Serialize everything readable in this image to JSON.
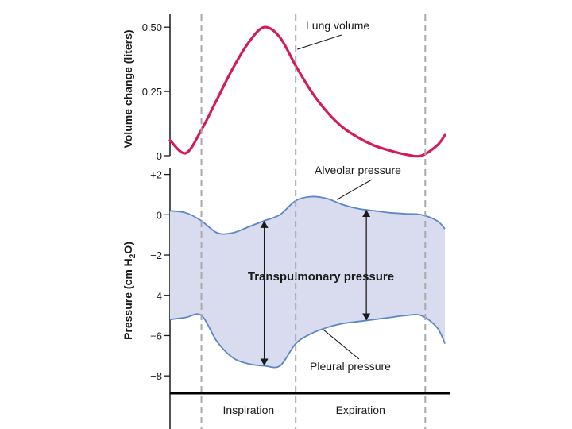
{
  "chart_data": [
    {
      "type": "line",
      "panel": "volume",
      "ylabel": "Volume change (liters)",
      "ylim": [
        0,
        0.55
      ],
      "yticks": [
        0,
        0.25,
        0.5
      ],
      "ytick_labels": [
        "0",
        "0.25",
        "0.50"
      ],
      "xlim": [
        0,
        7
      ],
      "series": [
        {
          "name": "Lung volume",
          "color": "#d6195c",
          "x": [
            0,
            0.4,
            0.8,
            1.2,
            1.6,
            2.0,
            2.4,
            2.8,
            3.2,
            3.6,
            4.0,
            4.4,
            4.8,
            5.2,
            5.6,
            6.0,
            6.4,
            6.8,
            7.0
          ],
          "y": [
            0.06,
            0.01,
            0.1,
            0.22,
            0.34,
            0.44,
            0.5,
            0.46,
            0.35,
            0.25,
            0.17,
            0.11,
            0.07,
            0.04,
            0.02,
            0.005,
            0.0,
            0.04,
            0.08
          ]
        }
      ],
      "annotations": [
        {
          "text": "Lung volume",
          "x": 3.0,
          "y": 0.42
        }
      ]
    },
    {
      "type": "line",
      "panel": "pressure",
      "ylabel": "Pressure (cm H2O)",
      "ylabel_main": "Pressure (cm H",
      "ylabel_sub": "2",
      "ylabel_tail": "O)",
      "ylim": [
        -8.9,
        2.3
      ],
      "yticks": [
        2,
        0,
        -2,
        -4,
        -6,
        -8
      ],
      "ytick_labels": [
        "+2",
        "0",
        "−2",
        "−4",
        "−6",
        "−8"
      ],
      "xlim": [
        0,
        7
      ],
      "series": [
        {
          "name": "Alveolar pressure",
          "color": "#5a87c5",
          "x": [
            0,
            0.4,
            0.8,
            1.2,
            1.6,
            2.0,
            2.4,
            2.8,
            3.2,
            3.6,
            4.0,
            4.4,
            4.8,
            5.2,
            5.6,
            6.0,
            6.4,
            6.8,
            7.0
          ],
          "y": [
            0.2,
            0.1,
            -0.3,
            -0.9,
            -0.9,
            -0.6,
            -0.3,
            0.0,
            0.7,
            0.9,
            0.8,
            0.5,
            0.3,
            0.2,
            0.1,
            0.05,
            0.0,
            -0.3,
            -0.7
          ]
        },
        {
          "name": "Pleural pressure",
          "color": "#5a87c5",
          "x": [
            0,
            0.4,
            0.8,
            1.2,
            1.6,
            2.0,
            2.4,
            2.8,
            3.2,
            3.6,
            4.0,
            4.4,
            4.8,
            5.2,
            5.6,
            6.0,
            6.4,
            6.8,
            7.0
          ],
          "y": [
            -5.2,
            -5.1,
            -5.0,
            -6.3,
            -7.1,
            -7.4,
            -7.5,
            -7.5,
            -6.4,
            -5.9,
            -5.6,
            -5.4,
            -5.3,
            -5.2,
            -5.1,
            -5.0,
            -5.0,
            -5.6,
            -6.4
          ]
        }
      ],
      "fill_between": {
        "series": [
          "Alveolar pressure",
          "Pleural pressure"
        ],
        "color": "#d9dcef",
        "label": "Transpulmonary pressure"
      },
      "annotations": [
        {
          "text": "Alveolar pressure",
          "x": 4.6,
          "y": 1.6
        },
        {
          "text": "Pleural pressure",
          "x": 4.5,
          "y": -7.6
        },
        {
          "text": "Transpulmonary pressure",
          "x": 3.9,
          "y": -3.0
        }
      ],
      "double_arrows": [
        {
          "x": 2.4,
          "from": -0.3,
          "to": -7.5
        },
        {
          "x": 5.0,
          "from": 0.25,
          "to": -5.25
        }
      ]
    }
  ],
  "phases": [
    {
      "label": "Inspiration",
      "from": 0.8,
      "to": 3.2
    },
    {
      "label": "Expiration",
      "from": 3.2,
      "to": 6.5
    }
  ],
  "dashed_boundaries_x": [
    0.8,
    3.2,
    6.5
  ]
}
